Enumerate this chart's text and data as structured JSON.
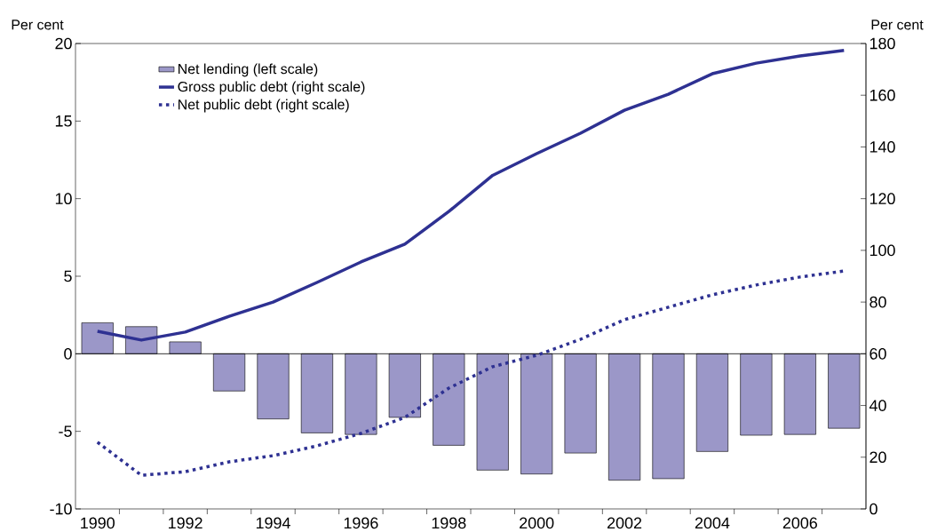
{
  "chart_data": {
    "type": "bar",
    "ylabel": "Per cent",
    "y2label": "Per cent",
    "categories": [
      "1990",
      null,
      "1992",
      null,
      "1994",
      null,
      "1996",
      null,
      "1998",
      null,
      "2000",
      null,
      "2002",
      null,
      "2004",
      null,
      "2006",
      null
    ],
    "series": [
      {
        "name": "Net lending (left scale)",
        "type": "bar",
        "color": "#9b97c8",
        "values": [
          2.0,
          1.75,
          0.77,
          -2.4,
          -4.2,
          -5.1,
          -5.2,
          -4.1,
          -5.9,
          -7.5,
          -7.75,
          -6.4,
          -8.15,
          -8.05,
          -6.3,
          -5.25,
          -5.2,
          -4.8
        ]
      },
      {
        "name": "Gross public debt (right scale)",
        "type": "line",
        "axis": "y2",
        "line_style": "solid",
        "color": "#2e3192",
        "values": [
          68.7,
          65.3,
          68.4,
          74.5,
          80,
          87.6,
          95.5,
          102.4,
          115,
          129,
          137.4,
          145.3,
          154.2,
          160.4,
          168.3,
          172.4,
          175.2,
          177.3
        ]
      },
      {
        "name": "Net public debt (right scale)",
        "type": "line",
        "axis": "y2",
        "line_style": "dotted",
        "color": "#2e3192",
        "values": [
          25.8,
          13,
          14.4,
          18.2,
          20.6,
          24.4,
          29.2,
          35.4,
          46.7,
          55,
          59.4,
          65.6,
          73.2,
          78,
          82.8,
          86.6,
          89.7,
          92
        ]
      }
    ],
    "ylim": [
      -10,
      20
    ],
    "yticks": [
      -10,
      -5,
      0,
      5,
      10,
      15,
      20
    ],
    "y2lim": [
      0,
      180
    ],
    "y2ticks": [
      0,
      20,
      40,
      60,
      80,
      100,
      120,
      140,
      160,
      180
    ],
    "legend": "top left"
  }
}
